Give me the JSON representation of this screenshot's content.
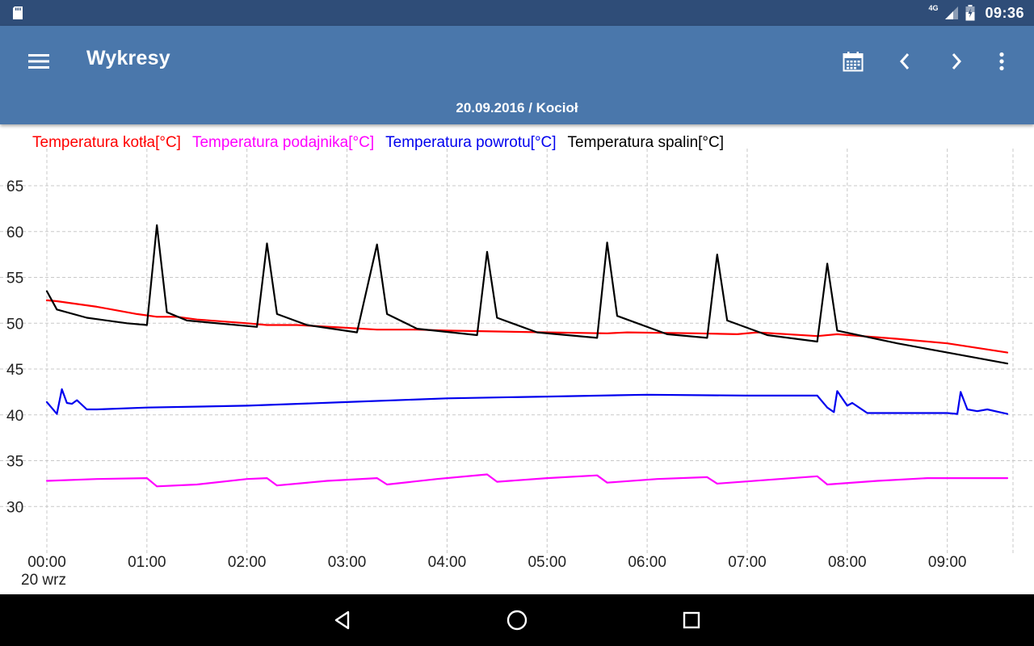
{
  "status_bar": {
    "network": "4G",
    "time": "09:36",
    "icons": [
      "sd-card-icon",
      "signal-icon",
      "battery-icon"
    ]
  },
  "app_bar": {
    "title": "Wykresy",
    "subtitle": "20.09.2016 / Kocioł",
    "icons": [
      "menu-icon",
      "calendar-icon",
      "chevron-left-icon",
      "chevron-right-icon",
      "overflow-menu-icon"
    ]
  },
  "nav_bar": {
    "icons": [
      "back-icon",
      "home-icon",
      "recents-icon"
    ]
  },
  "colors": {
    "status_bar": "#2f4d78",
    "app_bar": "#4a77ab",
    "kotla": "#ff0000",
    "podajnika": "#ff00ff",
    "powrotu": "#0000ee",
    "spalin": "#000000"
  },
  "chart_data": {
    "type": "line",
    "x_unit": "hours",
    "x_tick_labels": [
      "00:00",
      "01:00",
      "02:00",
      "03:00",
      "04:00",
      "05:00",
      "06:00",
      "07:00",
      "08:00",
      "09:00"
    ],
    "x_date_label": "20 wrz",
    "xlim": [
      "00:00",
      "09:36"
    ],
    "ylim": [
      25,
      68
    ],
    "y_ticks": [
      30,
      35,
      40,
      45,
      50,
      55,
      60,
      65
    ],
    "grid": true,
    "legend_position": "top-left",
    "series": [
      {
        "name": "Temperatura kotła[°C]",
        "color": "#ff0000",
        "points": [
          [
            "00:00",
            52.5
          ],
          [
            "00:06",
            52.4
          ],
          [
            "00:30",
            51.8
          ],
          [
            "00:54",
            51.0
          ],
          [
            "01:06",
            50.7
          ],
          [
            "01:18",
            50.7
          ],
          [
            "01:30",
            50.4
          ],
          [
            "02:00",
            50.0
          ],
          [
            "02:12",
            49.8
          ],
          [
            "02:30",
            49.8
          ],
          [
            "03:00",
            49.5
          ],
          [
            "03:18",
            49.3
          ],
          [
            "03:42",
            49.3
          ],
          [
            "04:00",
            49.2
          ],
          [
            "04:30",
            49.1
          ],
          [
            "05:00",
            49.0
          ],
          [
            "05:36",
            48.9
          ],
          [
            "05:48",
            49.0
          ],
          [
            "06:30",
            48.9
          ],
          [
            "06:54",
            48.8
          ],
          [
            "07:06",
            49.0
          ],
          [
            "07:42",
            48.6
          ],
          [
            "07:54",
            48.8
          ],
          [
            "08:30",
            48.3
          ],
          [
            "09:00",
            47.8
          ],
          [
            "09:36",
            46.8
          ]
        ]
      },
      {
        "name": "Temperatura podajnika[°C]",
        "color": "#ff00ff",
        "points": [
          [
            "00:00",
            32.8
          ],
          [
            "00:30",
            33.0
          ],
          [
            "01:00",
            33.1
          ],
          [
            "01:06",
            32.2
          ],
          [
            "01:30",
            32.4
          ],
          [
            "02:00",
            33.0
          ],
          [
            "02:12",
            33.1
          ],
          [
            "02:18",
            32.3
          ],
          [
            "02:48",
            32.8
          ],
          [
            "03:18",
            33.1
          ],
          [
            "03:24",
            32.4
          ],
          [
            "03:54",
            33.0
          ],
          [
            "04:24",
            33.5
          ],
          [
            "04:30",
            32.7
          ],
          [
            "05:00",
            33.1
          ],
          [
            "05:30",
            33.4
          ],
          [
            "05:36",
            32.6
          ],
          [
            "06:06",
            33.0
          ],
          [
            "06:36",
            33.2
          ],
          [
            "06:42",
            32.5
          ],
          [
            "07:12",
            32.9
          ],
          [
            "07:42",
            33.3
          ],
          [
            "07:48",
            32.4
          ],
          [
            "08:18",
            32.8
          ],
          [
            "08:48",
            33.1
          ],
          [
            "09:36",
            33.1
          ]
        ]
      },
      {
        "name": "Temperatura powrotu[°C]",
        "color": "#0000ee",
        "points": [
          [
            "00:00",
            41.4
          ],
          [
            "00:06",
            40.1
          ],
          [
            "00:09",
            42.8
          ],
          [
            "00:12",
            41.3
          ],
          [
            "00:15",
            41.2
          ],
          [
            "00:18",
            41.6
          ],
          [
            "00:24",
            40.6
          ],
          [
            "00:30",
            40.6
          ],
          [
            "01:00",
            40.8
          ],
          [
            "02:00",
            41.0
          ],
          [
            "03:00",
            41.4
          ],
          [
            "04:00",
            41.8
          ],
          [
            "05:00",
            42.0
          ],
          [
            "06:00",
            42.2
          ],
          [
            "07:00",
            42.1
          ],
          [
            "07:42",
            42.1
          ],
          [
            "07:48",
            40.8
          ],
          [
            "07:52",
            40.3
          ],
          [
            "07:54",
            42.6
          ],
          [
            "08:00",
            41.0
          ],
          [
            "08:03",
            41.3
          ],
          [
            "08:12",
            40.2
          ],
          [
            "09:00",
            40.2
          ],
          [
            "09:06",
            40.1
          ],
          [
            "09:08",
            42.5
          ],
          [
            "09:12",
            40.6
          ],
          [
            "09:18",
            40.4
          ],
          [
            "09:24",
            40.6
          ],
          [
            "09:36",
            40.1
          ]
        ]
      },
      {
        "name": "Temperatura spalin[°C]",
        "color": "#000000",
        "points": [
          [
            "00:00",
            53.5
          ],
          [
            "00:06",
            51.5
          ],
          [
            "00:24",
            50.6
          ],
          [
            "00:48",
            50.0
          ],
          [
            "01:00",
            49.8
          ],
          [
            "01:06",
            60.7
          ],
          [
            "01:12",
            51.2
          ],
          [
            "01:24",
            50.3
          ],
          [
            "02:06",
            49.6
          ],
          [
            "02:12",
            58.7
          ],
          [
            "02:18",
            51.0
          ],
          [
            "02:36",
            49.8
          ],
          [
            "03:06",
            49.0
          ],
          [
            "03:18",
            58.6
          ],
          [
            "03:24",
            51.0
          ],
          [
            "03:42",
            49.4
          ],
          [
            "04:18",
            48.7
          ],
          [
            "04:24",
            57.8
          ],
          [
            "04:30",
            50.6
          ],
          [
            "04:54",
            49.0
          ],
          [
            "05:30",
            48.4
          ],
          [
            "05:36",
            58.8
          ],
          [
            "05:42",
            50.8
          ],
          [
            "06:12",
            48.8
          ],
          [
            "06:36",
            48.4
          ],
          [
            "06:42",
            57.5
          ],
          [
            "06:48",
            50.3
          ],
          [
            "07:12",
            48.7
          ],
          [
            "07:42",
            48.0
          ],
          [
            "07:48",
            56.5
          ],
          [
            "07:54",
            49.2
          ],
          [
            "08:30",
            47.8
          ],
          [
            "09:00",
            46.8
          ],
          [
            "09:36",
            45.6
          ]
        ]
      }
    ]
  }
}
